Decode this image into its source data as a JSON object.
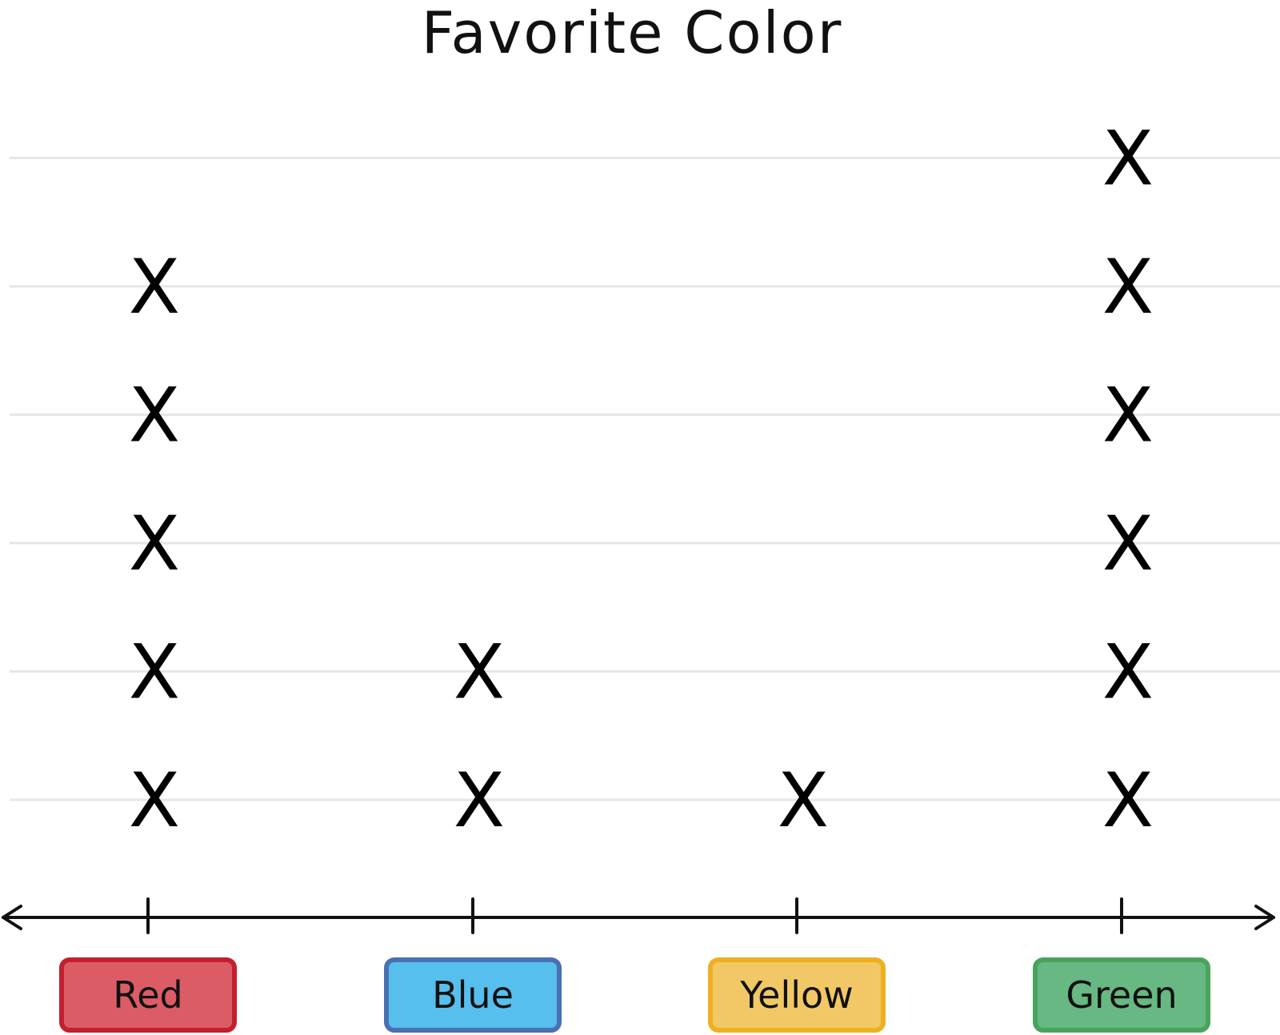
{
  "chart_data": {
    "type": "dot_plot",
    "title": "Favorite Color",
    "categories": [
      "Red",
      "Blue",
      "Yellow",
      "Green"
    ],
    "values": [
      5,
      2,
      1,
      6
    ],
    "mark_symbol": "X",
    "ylim": [
      0,
      6
    ],
    "grid": true,
    "category_colors": [
      {
        "fill": "#dc5c66",
        "border": "#c2202e"
      },
      {
        "fill": "#56bfee",
        "border": "#4a6fb2"
      },
      {
        "fill": "#f2c866",
        "border": "#efb020"
      },
      {
        "fill": "#67b882",
        "border": "#4aa35c"
      }
    ]
  }
}
